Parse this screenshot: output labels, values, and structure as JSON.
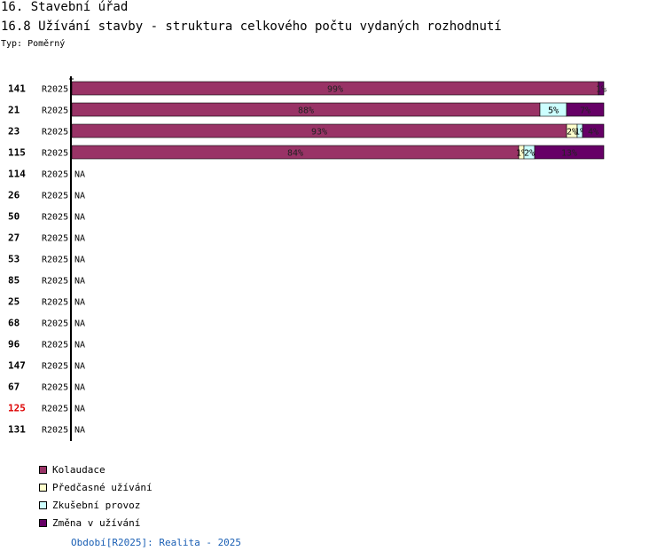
{
  "header": {
    "title": "16. Stavební úřad",
    "subtitle": "16.8 Užívání stavby - struktura celkového počtu vydaných rozhodnutí",
    "type_label": "Typ: Poměrný"
  },
  "chart_data": {
    "type": "bar",
    "stacked": true,
    "orientation": "horizontal",
    "title": "16.8 Užívání stavby - struktura celkového počtu vydaných rozhodnutí",
    "xlim": [
      0,
      100
    ],
    "series": [
      {
        "name": "Kolaudace",
        "color": "#993366"
      },
      {
        "name": "Předčasné užívání",
        "color": "#ffffcc"
      },
      {
        "name": "Zkušební provoz",
        "color": "#ccffff"
      },
      {
        "name": "Změna v užívání",
        "color": "#660066"
      }
    ],
    "rows": [
      {
        "id": "141",
        "period": "R2025",
        "values": [
          99,
          0,
          0,
          1
        ],
        "labels": [
          "99%",
          "",
          "",
          "1%"
        ]
      },
      {
        "id": "21",
        "period": "R2025",
        "values": [
          88,
          0,
          5,
          7
        ],
        "labels": [
          "88%",
          "",
          "5%",
          "7%"
        ]
      },
      {
        "id": "23",
        "period": "R2025",
        "values": [
          93,
          2,
          1,
          4
        ],
        "labels": [
          "93%",
          "2%",
          "1%",
          "4%"
        ]
      },
      {
        "id": "115",
        "period": "R2025",
        "values": [
          84,
          1,
          2,
          13
        ],
        "labels": [
          "84%",
          "1%",
          "2%",
          "13%"
        ]
      },
      {
        "id": "114",
        "period": "R2025",
        "values": null,
        "na": "NA"
      },
      {
        "id": "26",
        "period": "R2025",
        "values": null,
        "na": "NA"
      },
      {
        "id": "50",
        "period": "R2025",
        "values": null,
        "na": "NA"
      },
      {
        "id": "27",
        "period": "R2025",
        "values": null,
        "na": "NA"
      },
      {
        "id": "53",
        "period": "R2025",
        "values": null,
        "na": "NA"
      },
      {
        "id": "85",
        "period": "R2025",
        "values": null,
        "na": "NA"
      },
      {
        "id": "25",
        "period": "R2025",
        "values": null,
        "na": "NA"
      },
      {
        "id": "68",
        "period": "R2025",
        "values": null,
        "na": "NA"
      },
      {
        "id": "96",
        "period": "R2025",
        "values": null,
        "na": "NA"
      },
      {
        "id": "147",
        "period": "R2025",
        "values": null,
        "na": "NA"
      },
      {
        "id": "67",
        "period": "R2025",
        "values": null,
        "na": "NA"
      },
      {
        "id": "125",
        "period": "R2025",
        "values": null,
        "na": "NA",
        "highlight": true
      },
      {
        "id": "131",
        "period": "R2025",
        "values": null,
        "na": "NA"
      }
    ],
    "highlight_color": "#dd0000"
  },
  "legend": {
    "items": [
      {
        "label": "Kolaudace",
        "color": "#993366"
      },
      {
        "label": "Předčasné užívání",
        "color": "#ffffcc"
      },
      {
        "label": "Zkušební provoz",
        "color": "#ccffff"
      },
      {
        "label": "Změna v užívání",
        "color": "#660066"
      }
    ]
  },
  "footer": {
    "period_note": "Období[R2025]: Realita - 2025"
  }
}
